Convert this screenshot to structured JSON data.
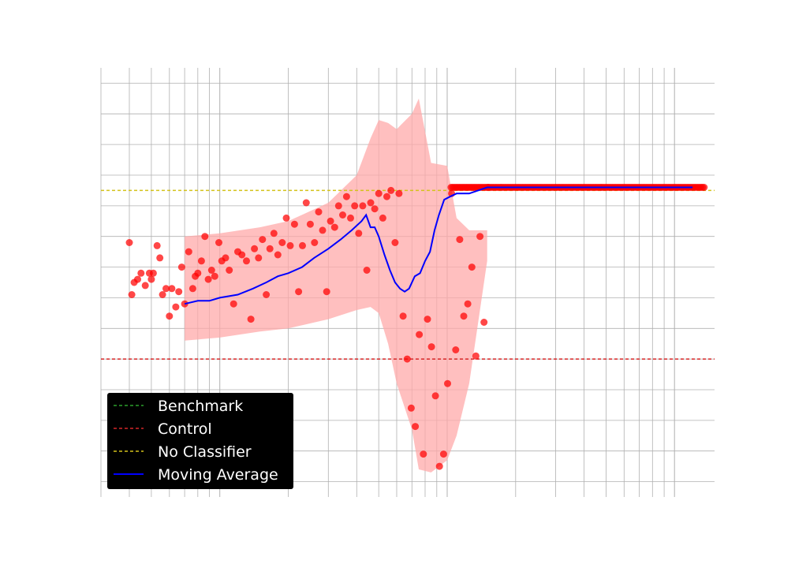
{
  "chart_data": {
    "type": "scatter",
    "x_scale": "log",
    "xlim": [
      3,
      1500
    ],
    "ylim": [
      -0.95,
      0.45
    ],
    "grid": true,
    "legend_placement": "lower-left",
    "colors": {
      "benchmark": "#2ca02c",
      "control": "#d62728",
      "no_classifier": "#d4c21a",
      "moving_average": "#0000ff",
      "points": "#ff0000",
      "band": "#ffaaaa",
      "legend_bg": "#000000"
    },
    "reference_lines": [
      {
        "name": "Control",
        "y": -0.5
      },
      {
        "name": "No Classifier",
        "y": 0.05
      }
    ],
    "legend": [
      {
        "label": "Benchmark",
        "style": "dashed",
        "color": "#2ca02c"
      },
      {
        "label": "Control",
        "style": "dashed",
        "color": "#d62728"
      },
      {
        "label": "No Classifier",
        "style": "dashed",
        "color": "#d4c21a"
      },
      {
        "label": "Moving Average",
        "style": "solid",
        "color": "#0000ff"
      }
    ],
    "series": [
      {
        "name": "points",
        "points": [
          [
            4.0,
            -0.12
          ],
          [
            4.1,
            -0.29
          ],
          [
            4.2,
            -0.25
          ],
          [
            4.35,
            -0.24
          ],
          [
            4.5,
            -0.22
          ],
          [
            4.7,
            -0.26
          ],
          [
            4.9,
            -0.22
          ],
          [
            5.0,
            -0.24
          ],
          [
            5.1,
            -0.22
          ],
          [
            5.3,
            -0.13
          ],
          [
            5.45,
            -0.17
          ],
          [
            5.6,
            -0.29
          ],
          [
            5.8,
            -0.27
          ],
          [
            6.0,
            -0.36
          ],
          [
            6.15,
            -0.27
          ],
          [
            6.4,
            -0.33
          ],
          [
            6.6,
            -0.28
          ],
          [
            6.8,
            -0.2
          ],
          [
            7.0,
            -0.32
          ],
          [
            7.3,
            -0.15
          ],
          [
            7.6,
            -0.27
          ],
          [
            7.8,
            -0.23
          ],
          [
            8.0,
            -0.22
          ],
          [
            8.3,
            -0.18
          ],
          [
            8.6,
            -0.1
          ],
          [
            8.9,
            -0.24
          ],
          [
            9.2,
            -0.21
          ],
          [
            9.5,
            -0.23
          ],
          [
            9.9,
            -0.12
          ],
          [
            10.2,
            -0.18
          ],
          [
            10.6,
            -0.17
          ],
          [
            11.0,
            -0.21
          ],
          [
            11.5,
            -0.32
          ],
          [
            12.0,
            -0.15
          ],
          [
            12.5,
            -0.16
          ],
          [
            13.1,
            -0.18
          ],
          [
            13.7,
            -0.37
          ],
          [
            14.2,
            -0.14
          ],
          [
            14.8,
            -0.17
          ],
          [
            15.4,
            -0.11
          ],
          [
            16.0,
            -0.29
          ],
          [
            16.6,
            -0.14
          ],
          [
            17.3,
            -0.09
          ],
          [
            18.0,
            -0.16
          ],
          [
            18.8,
            -0.12
          ],
          [
            19.6,
            -0.04
          ],
          [
            20.4,
            -0.13
          ],
          [
            21.3,
            -0.06
          ],
          [
            22.2,
            -0.28
          ],
          [
            23.1,
            -0.13
          ],
          [
            24.0,
            0.01
          ],
          [
            25.0,
            -0.06
          ],
          [
            26.1,
            -0.12
          ],
          [
            27.2,
            -0.02
          ],
          [
            28.3,
            -0.08
          ],
          [
            29.5,
            -0.28
          ],
          [
            30.7,
            -0.05
          ],
          [
            32.0,
            -0.07
          ],
          [
            33.3,
            0.0
          ],
          [
            34.7,
            -0.03
          ],
          [
            36.1,
            0.03
          ],
          [
            37.6,
            -0.04
          ],
          [
            39.2,
            0.0
          ],
          [
            40.8,
            -0.09
          ],
          [
            42.5,
            0.0
          ],
          [
            44.3,
            -0.21
          ],
          [
            46.1,
            0.01
          ],
          [
            48.0,
            -0.01
          ],
          [
            50.0,
            0.04
          ],
          [
            52.1,
            -0.04
          ],
          [
            54.3,
            0.03
          ],
          [
            56.6,
            0.05
          ],
          [
            59.0,
            -0.12
          ],
          [
            61.4,
            0.04
          ],
          [
            64.0,
            -0.36
          ],
          [
            66.7,
            -0.5
          ],
          [
            69.5,
            -0.66
          ],
          [
            72.4,
            -0.72
          ],
          [
            75.4,
            -0.42
          ],
          [
            78.6,
            -0.81
          ],
          [
            81.9,
            -0.37
          ],
          [
            85.3,
            -0.46
          ],
          [
            88.8,
            -0.62
          ],
          [
            92.5,
            -0.85
          ],
          [
            96.4,
            -0.81
          ],
          [
            100.4,
            -0.58
          ],
          [
            104.6,
            0.04
          ],
          [
            109.0,
            -0.47
          ],
          [
            113.6,
            -0.11
          ],
          [
            118.3,
            -0.36
          ],
          [
            123.2,
            -0.32
          ],
          [
            128.4,
            -0.2
          ],
          [
            133.8,
            -0.49
          ],
          [
            139.4,
            -0.1
          ],
          [
            145.2,
            -0.38
          ],
          [
            151.3,
            0.06
          ]
        ]
      },
      {
        "name": "Moving Average",
        "points": [
          [
            7.0,
            -0.32
          ],
          [
            8.0,
            -0.31
          ],
          [
            9.0,
            -0.31
          ],
          [
            10.0,
            -0.3
          ],
          [
            12.0,
            -0.29
          ],
          [
            14.0,
            -0.27
          ],
          [
            16.0,
            -0.25
          ],
          [
            18.0,
            -0.23
          ],
          [
            20.0,
            -0.22
          ],
          [
            23.0,
            -0.2
          ],
          [
            26.0,
            -0.17
          ],
          [
            30.0,
            -0.14
          ],
          [
            34.0,
            -0.11
          ],
          [
            38.0,
            -0.08
          ],
          [
            42.0,
            -0.05
          ],
          [
            44.0,
            -0.03
          ],
          [
            46.0,
            -0.07
          ],
          [
            48.0,
            -0.07
          ],
          [
            50.0,
            -0.1
          ],
          [
            53.0,
            -0.16
          ],
          [
            56.0,
            -0.21
          ],
          [
            59.0,
            -0.25
          ],
          [
            62.0,
            -0.27
          ],
          [
            65.0,
            -0.28
          ],
          [
            68.0,
            -0.27
          ],
          [
            72.0,
            -0.23
          ],
          [
            76.0,
            -0.22
          ],
          [
            80.0,
            -0.18
          ],
          [
            84.0,
            -0.15
          ],
          [
            88.0,
            -0.08
          ],
          [
            92.0,
            -0.03
          ],
          [
            97.0,
            0.02
          ],
          [
            103.0,
            0.03
          ],
          [
            110.0,
            0.04
          ],
          [
            125.0,
            0.04
          ],
          [
            150.0,
            0.06
          ],
          [
            200.0,
            0.06
          ],
          [
            400.0,
            0.06
          ],
          [
            800.0,
            0.06
          ],
          [
            1200.0,
            0.06
          ]
        ]
      },
      {
        "name": "band",
        "x": [
          7.0,
          10.0,
          15.0,
          20.0,
          30.0,
          40.0,
          46.0,
          50.0,
          55.0,
          60.0,
          70.0,
          75.0,
          85.0,
          100.0,
          110.0,
          125.0,
          150.0
        ],
        "upper": [
          -0.1,
          -0.09,
          -0.07,
          -0.05,
          0.01,
          0.1,
          0.22,
          0.28,
          0.27,
          0.25,
          0.3,
          0.35,
          0.14,
          0.13,
          -0.04,
          -0.08,
          -0.08
        ],
        "lower": [
          -0.44,
          -0.43,
          -0.41,
          -0.4,
          -0.37,
          -0.34,
          -0.33,
          -0.35,
          -0.45,
          -0.58,
          -0.73,
          -0.86,
          -0.87,
          -0.83,
          -0.75,
          -0.58,
          -0.18
        ]
      }
    ],
    "flat_points": {
      "x_start": 104.0,
      "x_end": 1350.0,
      "count": 150,
      "y": 0.06
    }
  }
}
